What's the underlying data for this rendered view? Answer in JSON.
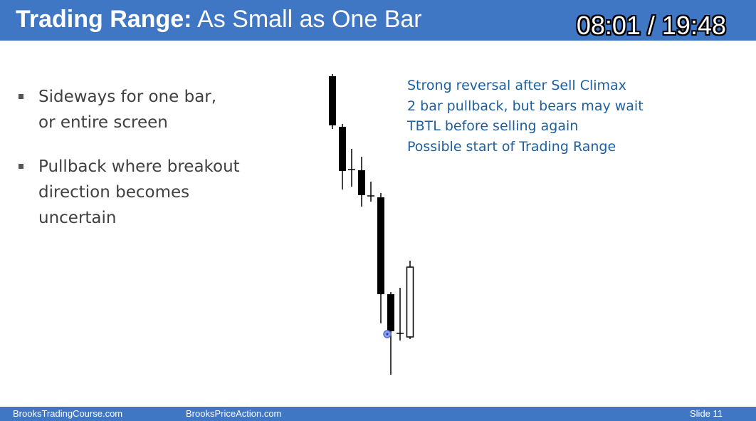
{
  "header": {
    "title_bold": "Trading Range:",
    "title_rest": " As Small as One Bar",
    "timer": "08:01 / 19:48"
  },
  "bullets": [
    {
      "lines": [
        "Sideways for one bar,",
        "or entire screen"
      ]
    },
    {
      "lines": [
        "Pullback where breakout",
        "direction becomes",
        "uncertain"
      ]
    }
  ],
  "notes": [
    "Strong reversal after Sell Climax",
    "2 bar pullback, but bears may wait",
    "TBTL before selling again",
    "Possible start of Trading Range"
  ],
  "footer": {
    "left": "BrooksTradingCourse.com",
    "center": "BrooksPriceAction.com",
    "slide": "Slide  11"
  },
  "colors": {
    "brand": "#3f77c4",
    "note_text": "#1f5f9f",
    "body_text": "#404040",
    "cursor": "#5a6fd8"
  }
}
